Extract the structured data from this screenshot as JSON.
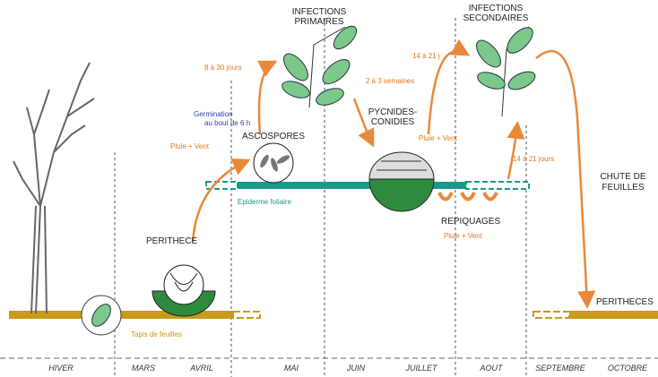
{
  "months": [
    "HIVER",
    "MARS",
    "AVRIL",
    "MAI",
    "JUIN",
    "JUILLET",
    "AOUT",
    "SEPTEMBRE",
    "OCTOBRE"
  ],
  "labels": {
    "infections_primaires": [
      "INFECTIONS",
      "PRIMAIRES"
    ],
    "infections_secondaires": [
      "INFECTIONS",
      "SECONDAIRES"
    ],
    "delay_primary": "8 à 30 jours",
    "delay_pycnides": "2 à 3 semaines",
    "delay_secondary": "14 à 21 j",
    "delay_repiquages": "14 à 21 jours",
    "germination": [
      "Germination",
      "au bout de 6 h"
    ],
    "rain_wind_1": "Pluie + Vent",
    "rain_wind_2": "Pluie + Vent",
    "rain_wind_3": "Pluie + Vent",
    "ascospores": "ASCOSPORES",
    "pycnides": [
      "PYCNIDES-",
      "CONIDIES"
    ],
    "perithece": "PERITHECE",
    "epiderme": "Epiderme foliaire",
    "repiquages": "REPIQUAGES",
    "chute": [
      "CHUTE DE",
      "FEUILLES"
    ],
    "peritheces": "PERITHECES",
    "tapis": "Tapis de feuilles"
  }
}
